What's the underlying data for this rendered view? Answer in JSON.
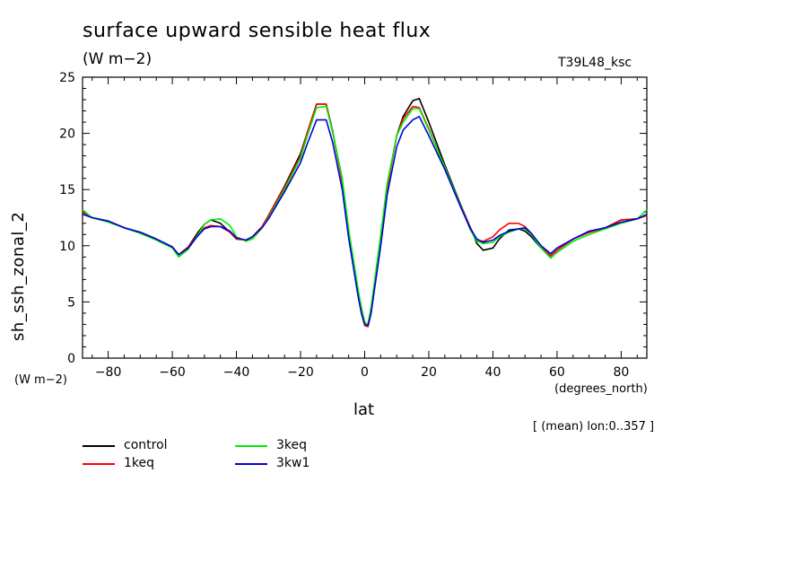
{
  "header": {
    "title": "surface upward sensible heat flux",
    "units": "(W m−2)",
    "run": "T39L48_ksc"
  },
  "footnote": "[ (mean) lon:0..357 ]",
  "chart_data": {
    "type": "line",
    "title": "surface upward sensible heat flux",
    "xlabel": "lat",
    "ylabel": "sh_ssh_zonal_2",
    "x_units": "(degrees_north)",
    "y_units": "(W m−2)",
    "xlim": [
      -88,
      88
    ],
    "ylim": [
      0,
      25
    ],
    "xticks": [
      -80,
      -60,
      -40,
      -20,
      0,
      20,
      40,
      60,
      80
    ],
    "yticks": [
      0,
      5,
      10,
      15,
      20,
      25
    ],
    "grid": false,
    "legend_position": "bottom-left",
    "x": [
      -88,
      -85,
      -80,
      -75,
      -70,
      -65,
      -60,
      -58,
      -55,
      -52,
      -50,
      -48,
      -45,
      -42,
      -40,
      -37,
      -35,
      -32,
      -30,
      -25,
      -20,
      -18,
      -15,
      -12,
      -10,
      -7,
      -5,
      -2,
      -1,
      0,
      1,
      2,
      5,
      7,
      10,
      12,
      15,
      17,
      20,
      25,
      30,
      33,
      35,
      37,
      40,
      42,
      45,
      48,
      50,
      52,
      55,
      58,
      60,
      65,
      70,
      75,
      80,
      85,
      88
    ],
    "series": [
      {
        "name": "control",
        "color": "#000000",
        "values": [
          13.0,
          12.5,
          12.2,
          11.6,
          11.2,
          10.6,
          9.9,
          9.2,
          9.9,
          11.2,
          11.9,
          12.3,
          12.0,
          11.2,
          10.6,
          10.5,
          10.8,
          11.7,
          12.7,
          15.3,
          18.2,
          20.0,
          22.6,
          22.6,
          20.2,
          15.7,
          11.0,
          5.5,
          4.0,
          3.0,
          2.8,
          4.0,
          10.5,
          15.2,
          19.8,
          21.5,
          22.9,
          23.1,
          21.0,
          17.2,
          13.6,
          11.6,
          10.2,
          9.6,
          9.8,
          10.6,
          11.4,
          11.5,
          11.3,
          10.8,
          9.8,
          9.1,
          9.6,
          10.6,
          11.2,
          11.6,
          12.3,
          12.4,
          12.7
        ]
      },
      {
        "name": "1keq",
        "color": "#ff0000",
        "values": [
          13.0,
          12.5,
          12.2,
          11.6,
          11.2,
          10.6,
          9.9,
          9.2,
          9.9,
          11.0,
          11.6,
          11.8,
          11.7,
          11.2,
          10.6,
          10.5,
          10.8,
          11.7,
          12.7,
          15.2,
          18.0,
          20.0,
          22.6,
          22.6,
          20.1,
          15.7,
          11.0,
          5.5,
          4.0,
          2.9,
          2.8,
          4.0,
          10.5,
          15.2,
          19.8,
          21.3,
          22.4,
          22.3,
          20.4,
          17.0,
          13.5,
          11.6,
          10.5,
          10.4,
          10.8,
          11.4,
          12.0,
          12.0,
          11.7,
          11.1,
          9.9,
          9.1,
          9.6,
          10.6,
          11.2,
          11.6,
          12.3,
          12.4,
          12.7
        ]
      },
      {
        "name": "3keq",
        "color": "#00ee00",
        "values": [
          13.2,
          12.5,
          12.1,
          11.6,
          11.1,
          10.5,
          9.8,
          9.0,
          9.7,
          11.0,
          11.9,
          12.3,
          12.4,
          11.8,
          10.8,
          10.4,
          10.6,
          11.6,
          12.5,
          15.0,
          17.8,
          19.7,
          22.3,
          22.4,
          20.1,
          16.0,
          11.5,
          6.0,
          4.5,
          3.2,
          3.0,
          4.5,
          11.0,
          15.5,
          19.8,
          21.0,
          22.2,
          22.2,
          20.3,
          17.0,
          13.5,
          11.4,
          10.4,
          10.2,
          10.3,
          10.8,
          11.2,
          11.5,
          11.5,
          11.0,
          9.8,
          8.9,
          9.4,
          10.4,
          11.0,
          11.5,
          12.0,
          12.4,
          13.2
        ]
      },
      {
        "name": "3kw1",
        "color": "#0000dd",
        "values": [
          12.8,
          12.5,
          12.2,
          11.6,
          11.2,
          10.6,
          9.9,
          9.2,
          9.8,
          10.9,
          11.5,
          11.7,
          11.7,
          11.3,
          10.7,
          10.5,
          10.8,
          11.6,
          12.4,
          14.8,
          17.4,
          19.0,
          21.2,
          21.2,
          19.2,
          15.0,
          10.7,
          5.4,
          4.0,
          3.0,
          2.9,
          4.0,
          10.0,
          14.5,
          18.8,
          20.3,
          21.2,
          21.5,
          19.8,
          16.8,
          13.4,
          11.5,
          10.6,
          10.3,
          10.5,
          10.9,
          11.3,
          11.5,
          11.6,
          11.1,
          10.0,
          9.3,
          9.8,
          10.6,
          11.3,
          11.6,
          12.1,
          12.4,
          12.8
        ]
      }
    ]
  }
}
